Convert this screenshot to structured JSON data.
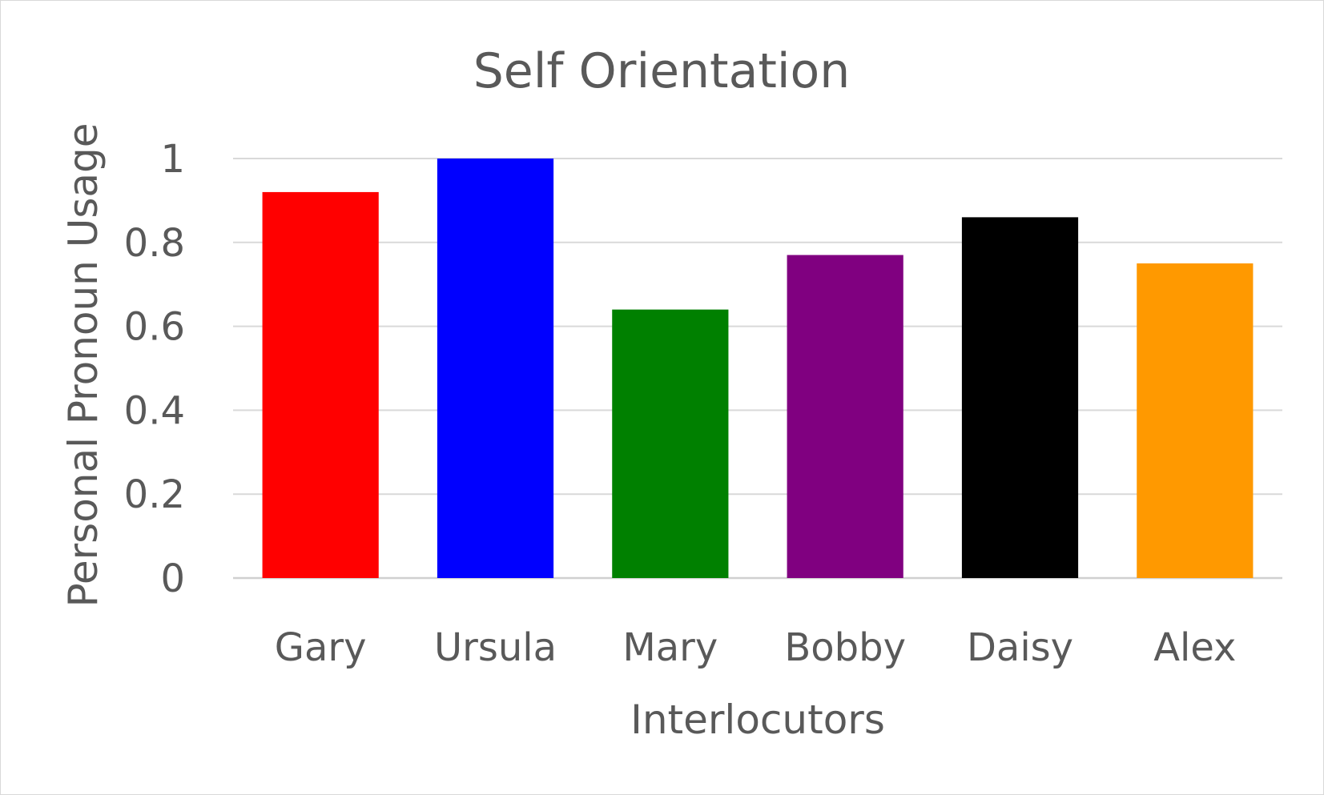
{
  "chart_data": {
    "type": "bar",
    "title": "Self Orientation",
    "xlabel": "Interlocutors",
    "ylabel": "Personal Pronoun Usage",
    "categories": [
      "Gary",
      "Ursula",
      "Mary",
      "Bobby",
      "Daisy",
      "Alex"
    ],
    "values": [
      0.92,
      1.0,
      0.64,
      0.77,
      0.86,
      0.75
    ],
    "colors": [
      "#ff0000",
      "#0000ff",
      "#008000",
      "#800080",
      "#000000",
      "#ff9900"
    ],
    "ylim": [
      0,
      1
    ],
    "y_ticks": [
      {
        "value": 0,
        "label": "0"
      },
      {
        "value": 0.2,
        "label": "0.2"
      },
      {
        "value": 0.4,
        "label": "0.4"
      },
      {
        "value": 0.6,
        "label": "0.6"
      },
      {
        "value": 0.8,
        "label": "0.8"
      },
      {
        "value": 1,
        "label": "1"
      }
    ],
    "grid": true,
    "legend": "none"
  }
}
